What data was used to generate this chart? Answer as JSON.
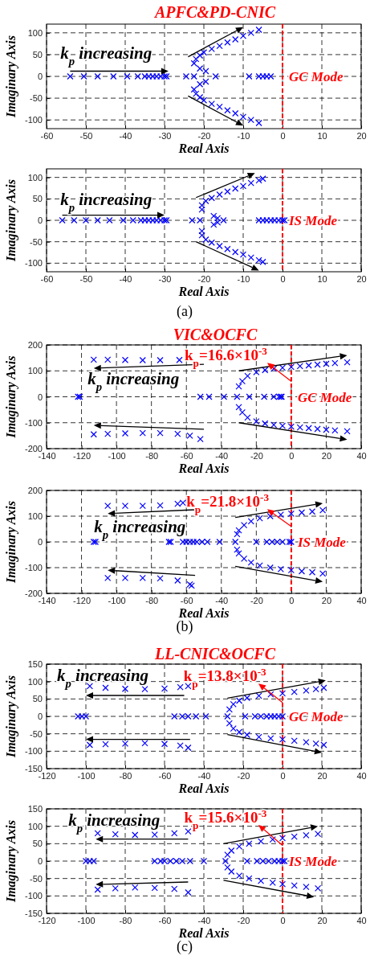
{
  "chart_data": [
    {
      "type": "scatter",
      "title": "APFC&PD-CNIC",
      "xlabel": "Real Axis",
      "ylabel": "Imaginary Axis",
      "marker": "cross",
      "grid": true,
      "xlim": [
        -60,
        20
      ],
      "xticks": [
        -60,
        -50,
        -40,
        -30,
        -20,
        -10,
        0,
        10,
        20
      ],
      "ylim": [
        -120,
        120
      ],
      "yticks": [
        -100,
        -50,
        0,
        50,
        100
      ],
      "ref_lines": [
        {
          "axis": "x",
          "value": 0,
          "label": "GC Mode",
          "color": "#ff0000",
          "line_style": "dashed"
        }
      ],
      "annotations": [
        {
          "text": "k$_{p}$ increasing",
          "x": -29,
          "y": 12
        }
      ],
      "series": [
        {
          "color": "#0000ff",
          "x": [
            -54,
            -50.5,
            -47,
            -43,
            -39.5,
            -36.8,
            -35,
            -34,
            -33,
            -32,
            -31,
            -30,
            -29.5,
            -24.5,
            -22.5,
            -17,
            -8.5,
            -6,
            -5,
            -4,
            -3
          ],
          "values": [
            0,
            0,
            0,
            0,
            0,
            0,
            0,
            0,
            0,
            0,
            0,
            0,
            0,
            0,
            0,
            0,
            0,
            0,
            0,
            0,
            0
          ]
        },
        {
          "color": "#0000ff",
          "x": [
            -21,
            -19.5,
            -21,
            -19.5
          ],
          "values": [
            18,
            12,
            -18,
            -12
          ]
        },
        {
          "color": "#0000ff",
          "x": [
            -22.5,
            -22,
            -21,
            -20,
            -18,
            -16,
            -14,
            -12,
            -10,
            -8,
            -6
          ],
          "values": [
            30,
            40,
            48,
            55,
            63,
            70,
            78,
            85,
            93,
            100,
            107
          ]
        },
        {
          "color": "#0000ff",
          "x": [
            -22.5,
            -22,
            -21,
            -20,
            -18,
            -16,
            -14,
            -12,
            -10,
            -8,
            -6
          ],
          "values": [
            -30,
            -40,
            -48,
            -55,
            -63,
            -70,
            -78,
            -85,
            -93,
            -100,
            -107
          ]
        }
      ]
    },
    {
      "type": "scatter",
      "xlabel": "Real Axis",
      "ylabel": "Imaginary Axis",
      "marker": "cross",
      "grid": true,
      "xlim": [
        -60,
        20
      ],
      "xticks": [
        -60,
        -50,
        -40,
        -30,
        -20,
        -10,
        0,
        10,
        20
      ],
      "ylim": [
        -120,
        120
      ],
      "yticks": [
        -100,
        -50,
        0,
        50,
        100
      ],
      "ref_lines": [
        {
          "axis": "x",
          "value": 0,
          "label": "IS Mode",
          "color": "#ff0000",
          "line_style": "dashed"
        }
      ],
      "annotations": [
        {
          "text": "k$_{p}$ increasing",
          "x": -30,
          "y": 12
        },
        "(a)"
      ],
      "series": [
        {
          "color": "#0000ff",
          "x": [
            -56,
            -53,
            -50,
            -47,
            -44,
            -40.5,
            -38,
            -36,
            -35,
            -34,
            -33,
            -32,
            -31,
            -30,
            -29.5,
            -23,
            -21,
            -15,
            -6,
            -5,
            -4,
            -3,
            -2,
            -1,
            0,
            0.5
          ],
          "values": [
            0,
            0,
            0,
            0,
            0,
            0,
            0,
            0,
            0,
            0,
            0,
            0,
            0,
            0,
            0,
            0,
            0,
            0,
            0,
            0,
            0,
            0,
            0,
            0,
            0,
            0
          ]
        },
        {
          "color": "#0000ff",
          "x": [
            -17.5,
            -16.5,
            -17.5,
            -16.5
          ],
          "values": [
            10,
            5,
            -10,
            -5
          ]
        },
        {
          "color": "#0000ff",
          "x": [
            -20.5,
            -20.5,
            -19.5,
            -18,
            -16,
            -14,
            -12,
            -10,
            -8,
            -6,
            -5
          ],
          "values": [
            25,
            35,
            45,
            52,
            60,
            67,
            74,
            80,
            87,
            93,
            97
          ]
        },
        {
          "color": "#0000ff",
          "x": [
            -20.5,
            -20.5,
            -19.5,
            -18,
            -16,
            -14,
            -12,
            -10,
            -8,
            -6,
            -5
          ],
          "values": [
            -25,
            -35,
            -45,
            -52,
            -60,
            -67,
            -74,
            -80,
            -87,
            -93,
            -97
          ]
        }
      ]
    },
    {
      "type": "scatter",
      "title": "VIC&OCFC",
      "xlabel": "Real Axis",
      "ylabel": "Imaginary Axis",
      "marker": "cross",
      "grid": true,
      "xlim": [
        -140,
        40
      ],
      "xticks": [
        -140,
        -120,
        -100,
        -80,
        -60,
        -40,
        -20,
        0,
        20,
        40
      ],
      "ylim": [
        -200,
        200
      ],
      "yticks": [
        -200,
        -100,
        0,
        100,
        200
      ],
      "ref_lines": [
        {
          "axis": "x",
          "value": 0,
          "label": "GC Mode",
          "color": "#ff0000",
          "line_style": "dashed"
        }
      ],
      "annotations": [
        "k$_{p}$ increasing",
        {
          "text": "k$_{p}$=16.6×10$^{-3}$",
          "x": 0,
          "y": 60
        }
      ],
      "series": [
        {
          "color": "#0000ff",
          "x": [
            -113,
            -105,
            -95,
            -85,
            -75,
            -64
          ],
          "values": [
            143,
            143,
            142,
            141,
            141,
            142
          ]
        },
        {
          "color": "#0000ff",
          "x": [
            -113,
            -105,
            -95,
            -85,
            -75,
            -65,
            -58,
            -52
          ],
          "values": [
            -145,
            -143,
            -141,
            -140,
            -140,
            -143,
            -150,
            -163
          ]
        },
        {
          "color": "#0000ff",
          "x": [
            -122,
            -121,
            -52,
            -47,
            -38.5,
            -24,
            -15.5,
            -10,
            -7,
            -6,
            -5.5,
            -31
          ],
          "values": [
            0,
            0,
            0,
            0,
            0,
            0,
            0,
            0,
            0,
            0,
            0,
            0
          ]
        },
        {
          "color": "#0000ff",
          "x": [
            -30,
            -28,
            -25,
            -20,
            -15,
            -10,
            -5,
            0,
            5,
            10,
            15,
            20,
            25,
            32
          ],
          "values": [
            40,
            60,
            80,
            95,
            103,
            108,
            112,
            115,
            118,
            121,
            124,
            127,
            130,
            133
          ]
        },
        {
          "color": "#0000ff",
          "x": [
            -30,
            -28,
            -25,
            -20,
            -15,
            -10,
            -5,
            0,
            5,
            10,
            15,
            20,
            25,
            32
          ],
          "values": [
            -40,
            -60,
            -80,
            -95,
            -103,
            -108,
            -112,
            -115,
            -118,
            -121,
            -124,
            -127,
            -130,
            -133
          ]
        }
      ]
    },
    {
      "type": "scatter",
      "xlabel": "Real Axis",
      "ylabel": "Imaginary Axis",
      "marker": "cross",
      "grid": true,
      "xlim": [
        -140,
        40
      ],
      "xticks": [
        -140,
        -120,
        -100,
        -80,
        -60,
        -40,
        -20,
        0,
        20,
        40
      ],
      "ylim": [
        -200,
        200
      ],
      "yticks": [
        -200,
        -100,
        0,
        100,
        200
      ],
      "ref_lines": [
        {
          "axis": "x",
          "value": 0,
          "label": "IS Mode",
          "color": "#ff0000",
          "line_style": "dashed"
        }
      ],
      "annotations": [
        "k$_{p}$ increasing",
        {
          "text": "k$_{p}$=21.8×10$^{-3}$",
          "x": 0,
          "y": 60
        },
        "(b)"
      ],
      "series": [
        {
          "color": "#0000ff",
          "x": [
            -105,
            -95,
            -85,
            -75,
            -65,
            -62
          ],
          "values": [
            140,
            140,
            140,
            142,
            148,
            152
          ]
        },
        {
          "color": "#0000ff",
          "x": [
            -105,
            -95,
            -85,
            -75,
            -65,
            -58,
            -57
          ],
          "values": [
            -140,
            -140,
            -140,
            -142,
            -150,
            -165,
            -170
          ]
        },
        {
          "color": "#0000ff",
          "x": [
            -113,
            -112,
            -70,
            -69,
            -62,
            -60,
            -58,
            -56,
            -54,
            -51,
            -48,
            -41,
            -20,
            -14,
            -11,
            -8,
            -5,
            -1,
            0,
            -32
          ],
          "values": [
            0,
            0,
            0,
            0,
            0,
            0,
            0,
            0,
            0,
            0,
            0,
            0,
            0,
            0,
            0,
            0,
            0,
            0,
            0,
            0
          ]
        },
        {
          "color": "#0000ff",
          "x": [
            -31,
            -30,
            -27,
            -23,
            -18,
            -12,
            -6,
            0,
            6,
            12,
            18
          ],
          "values": [
            30,
            45,
            65,
            80,
            92,
            100,
            106,
            110,
            114,
            118,
            123
          ]
        },
        {
          "color": "#0000ff",
          "x": [
            -31,
            -30,
            -27,
            -23,
            -18,
            -12,
            -6,
            0,
            6,
            12,
            18
          ],
          "values": [
            -30,
            -45,
            -65,
            -80,
            -92,
            -100,
            -106,
            -110,
            -114,
            -118,
            -123
          ]
        }
      ]
    },
    {
      "type": "scatter",
      "title": "LL-CNIC&OCFC",
      "xlabel": "Real Axis",
      "ylabel": "Imaginary Axis",
      "marker": "cross",
      "grid": true,
      "xlim": [
        -120,
        40
      ],
      "xticks": [
        -120,
        -100,
        -80,
        -60,
        -40,
        -20,
        0,
        20,
        40
      ],
      "ylim": [
        -150,
        150
      ],
      "yticks": [
        -150,
        -100,
        -50,
        0,
        50,
        100,
        150
      ],
      "ref_lines": [
        {
          "axis": "x",
          "value": 0,
          "label": "GC Mode",
          "color": "#ff0000",
          "line_style": "dashed"
        }
      ],
      "annotations": [
        "k$_{p}$ increasing",
        {
          "text": "k$_{p}$=13.8×10$^{-3}$",
          "x": 0,
          "y": 40
        }
      ],
      "series": [
        {
          "color": "#0000ff",
          "x": [
            -98,
            -90,
            -80,
            -70,
            -60,
            -52,
            -48
          ],
          "values": [
            87,
            82,
            79,
            78,
            80,
            84,
            87
          ]
        },
        {
          "color": "#0000ff",
          "x": [
            -98,
            -90,
            -80,
            -70,
            -60,
            -52,
            -48
          ],
          "values": [
            -82,
            -80,
            -78,
            -77,
            -79,
            -84,
            -90
          ]
        },
        {
          "color": "#0000ff",
          "x": [
            -104,
            -102,
            -100,
            -55,
            -51,
            -48,
            -44,
            -39,
            -19,
            -14,
            -11,
            -8,
            -6,
            -4,
            -2,
            0,
            -28
          ],
          "values": [
            0,
            0,
            0,
            0,
            0,
            0,
            0,
            0,
            0,
            0,
            0,
            0,
            0,
            0,
            0,
            0,
            0
          ]
        },
        {
          "color": "#0000ff",
          "x": [
            -27,
            -25,
            -22,
            -18,
            -12,
            -6,
            0,
            6,
            12,
            17,
            21
          ],
          "values": [
            20,
            35,
            45,
            53,
            59,
            63,
            66,
            70,
            74,
            78,
            82
          ]
        },
        {
          "color": "#0000ff",
          "x": [
            -27,
            -25,
            -22,
            -18,
            -12,
            -6,
            0,
            6,
            12,
            17,
            21
          ],
          "values": [
            -20,
            -35,
            -45,
            -53,
            -59,
            -63,
            -66,
            -70,
            -74,
            -78,
            -82
          ]
        }
      ]
    },
    {
      "type": "scatter",
      "xlabel": "Real Axis",
      "ylabel": "Imaginary Axis",
      "marker": "cross",
      "grid": true,
      "xlim": [
        -120,
        40
      ],
      "xticks": [
        -120,
        -100,
        -80,
        -60,
        -40,
        -20,
        0,
        20,
        40
      ],
      "ylim": [
        -150,
        150
      ],
      "yticks": [
        -150,
        -100,
        -50,
        0,
        50,
        100,
        150
      ],
      "ref_lines": [
        {
          "axis": "x",
          "value": 0,
          "label": "IS Mode",
          "color": "#ff0000",
          "line_style": "dashed"
        }
      ],
      "annotations": [
        "k$_{p}$ increasing",
        {
          "text": "k$_{p}$=15.6×10$^{-3}$",
          "x": 0,
          "y": 45
        },
        "(c)"
      ],
      "series": [
        {
          "color": "#0000ff",
          "x": [
            -94,
            -85,
            -75,
            -65,
            -55,
            -48
          ],
          "values": [
            80,
            77,
            75,
            76,
            80,
            85
          ]
        },
        {
          "color": "#0000ff",
          "x": [
            -94,
            -85,
            -75,
            -65,
            -55,
            -48
          ],
          "values": [
            -82,
            -78,
            -76,
            -77,
            -80,
            -90
          ]
        },
        {
          "color": "#0000ff",
          "x": [
            -100,
            -98,
            -96,
            -65,
            -62,
            -60,
            -57,
            -54,
            -51,
            -47,
            -40,
            -18,
            -13,
            -10,
            -7,
            -4,
            -2,
            0,
            1,
            -29
          ],
          "values": [
            0,
            0,
            0,
            0,
            0,
            0,
            0,
            0,
            0,
            0,
            0,
            0,
            0,
            0,
            0,
            0,
            0,
            0,
            0,
            0
          ]
        },
        {
          "color": "#0000ff",
          "x": [
            -28,
            -26,
            -22,
            -17,
            -11,
            -5,
            0,
            6,
            12,
            18
          ],
          "values": [
            18,
            30,
            42,
            50,
            57,
            62,
            66,
            70,
            74,
            78
          ]
        },
        {
          "color": "#0000ff",
          "x": [
            -28,
            -26,
            -22,
            -17,
            -11,
            -5,
            0,
            6,
            12,
            18
          ],
          "values": [
            -18,
            -30,
            -42,
            -50,
            -57,
            -62,
            -66,
            -70,
            -74,
            -78
          ]
        }
      ]
    }
  ]
}
